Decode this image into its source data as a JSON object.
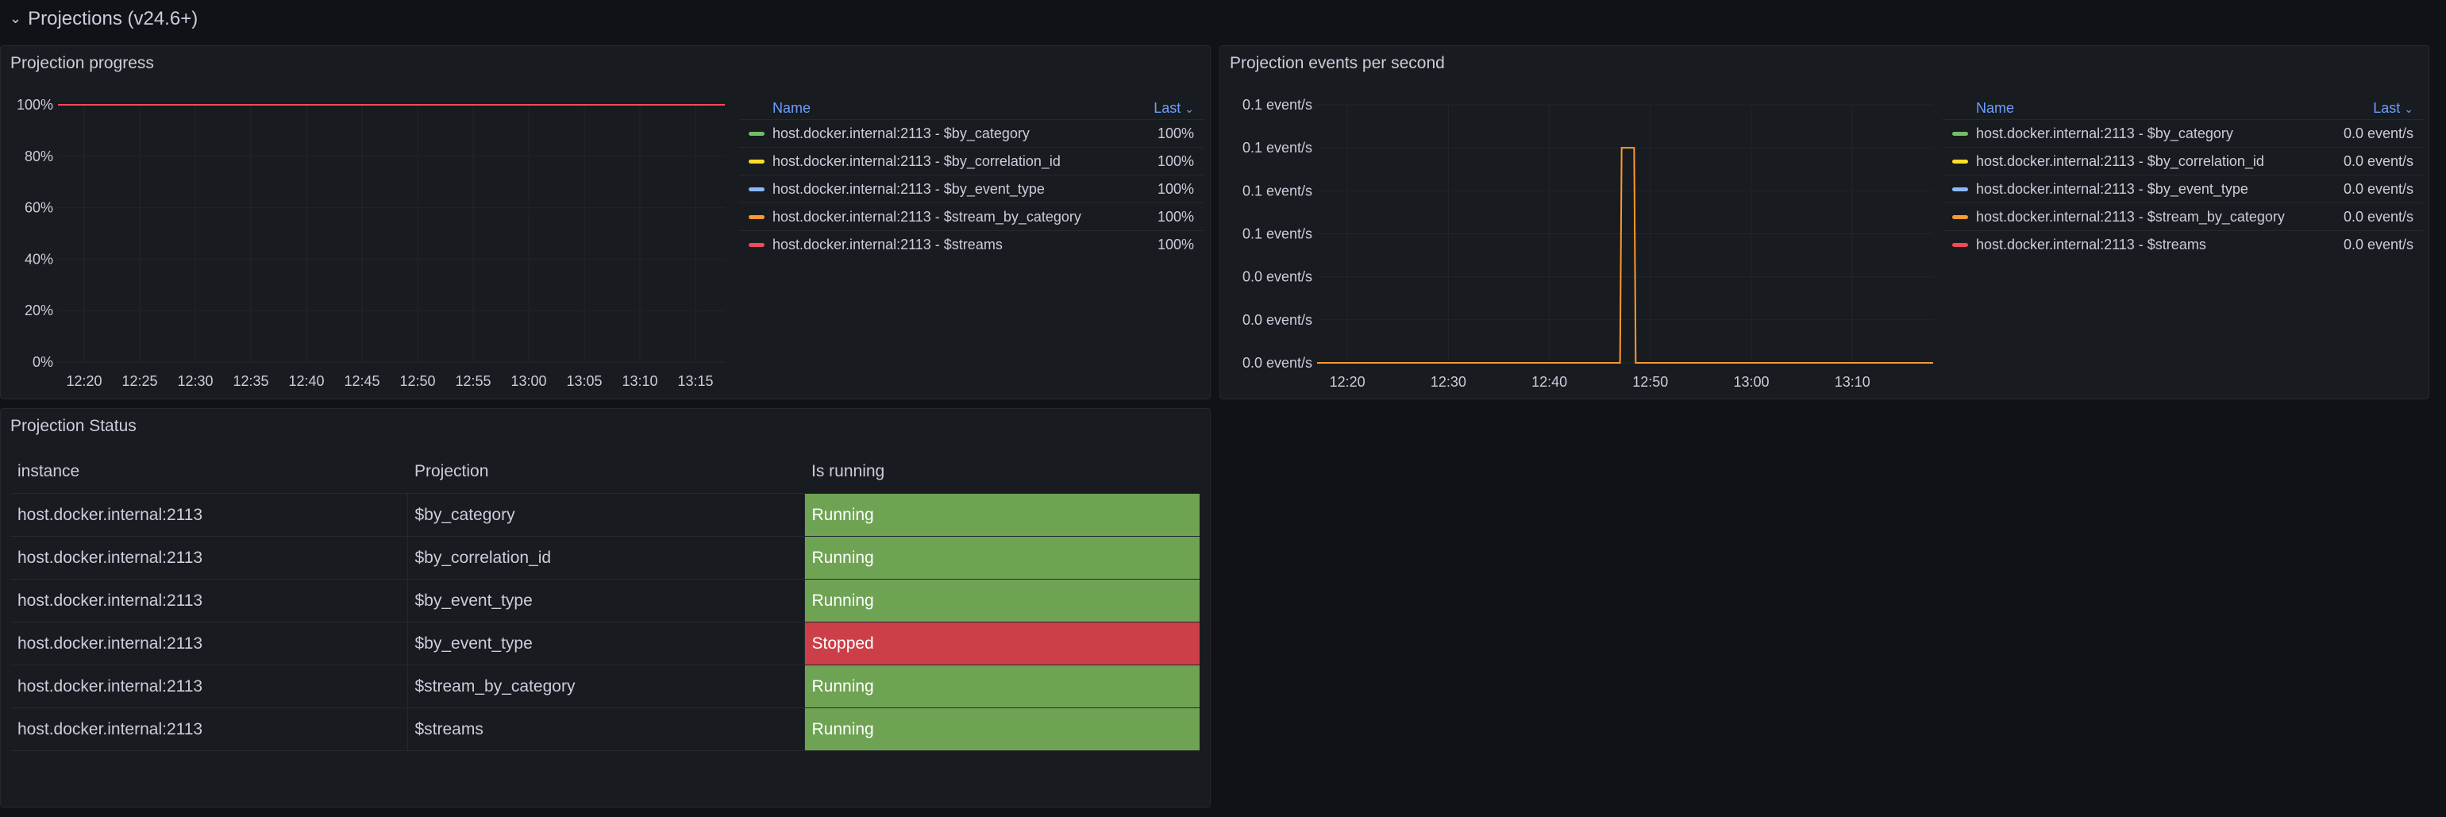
{
  "row": {
    "title": "Projections (v24.6+)"
  },
  "colors": {
    "green": "#73bf69",
    "yellow": "#fade2a",
    "blue": "#8ab8ff",
    "orange": "#ff9830",
    "red": "#f2495c",
    "running_bg": "#6fa354",
    "stopped_bg": "#cc3f48"
  },
  "progress_panel": {
    "title": "Projection progress",
    "legend": {
      "name_header": "Name",
      "last_header": "Last",
      "items": [
        {
          "label": "host.docker.internal:2113 - $by_category",
          "value": "100%",
          "color": "#73bf69"
        },
        {
          "label": "host.docker.internal:2113 - $by_correlation_id",
          "value": "100%",
          "color": "#fade2a"
        },
        {
          "label": "host.docker.internal:2113 - $by_event_type",
          "value": "100%",
          "color": "#8ab8ff"
        },
        {
          "label": "host.docker.internal:2113 - $stream_by_category",
          "value": "100%",
          "color": "#ff9830"
        },
        {
          "label": "host.docker.internal:2113 - $streams",
          "value": "100%",
          "color": "#f2495c"
        }
      ]
    },
    "chart_data": {
      "type": "line",
      "y_ticks": [
        "0%",
        "20%",
        "40%",
        "60%",
        "80%",
        "100%"
      ],
      "x_ticks": [
        "12:20",
        "12:25",
        "12:30",
        "12:35",
        "12:40",
        "12:45",
        "12:50",
        "12:55",
        "13:00",
        "13:05",
        "13:10",
        "13:15"
      ],
      "ylim": [
        0,
        100
      ],
      "series": [
        {
          "name": "host.docker.internal:2113 - $streams",
          "color": "#f2495c",
          "values": [
            100,
            100,
            100,
            100,
            100,
            100,
            100,
            100,
            100,
            100,
            100,
            100
          ]
        }
      ]
    }
  },
  "events_panel": {
    "title": "Projection events per second",
    "legend": {
      "name_header": "Name",
      "last_header": "Last",
      "items": [
        {
          "label": "host.docker.internal:2113 - $by_category",
          "value": "0.0 event/s",
          "color": "#73bf69"
        },
        {
          "label": "host.docker.internal:2113 - $by_correlation_id",
          "value": "0.0 event/s",
          "color": "#fade2a"
        },
        {
          "label": "host.docker.internal:2113 - $by_event_type",
          "value": "0.0 event/s",
          "color": "#8ab8ff"
        },
        {
          "label": "host.docker.internal:2113 - $stream_by_category",
          "value": "0.0 event/s",
          "color": "#ff9830"
        },
        {
          "label": "host.docker.internal:2113 - $streams",
          "value": "0.0 event/s",
          "color": "#f2495c"
        }
      ]
    },
    "chart_data": {
      "type": "line",
      "y_ticks": [
        "0.0 event/s",
        "0.0 event/s",
        "0.0 event/s",
        "0.1 event/s",
        "0.1 event/s",
        "0.1 event/s",
        "0.1 event/s"
      ],
      "x_ticks": [
        "12:20",
        "12:30",
        "12:40",
        "12:50",
        "13:00",
        "13:10"
      ],
      "ylim": [
        0,
        0.12
      ],
      "series": [
        {
          "name": "host.docker.internal:2113 - $stream_by_category",
          "color": "#ff9830",
          "points": [
            [
              "12:17",
              0
            ],
            [
              "12:47",
              0
            ],
            [
              "12:47",
              0.1
            ],
            [
              "12:48",
              0.1
            ],
            [
              "12:48",
              0
            ],
            [
              "13:18",
              0
            ]
          ]
        }
      ]
    }
  },
  "status_panel": {
    "title": "Projection Status",
    "headers": [
      "instance",
      "Projection",
      "Is running"
    ],
    "rows": [
      {
        "instance": "host.docker.internal:2113",
        "projection": "$by_category",
        "state": "Running"
      },
      {
        "instance": "host.docker.internal:2113",
        "projection": "$by_correlation_id",
        "state": "Running"
      },
      {
        "instance": "host.docker.internal:2113",
        "projection": "$by_event_type",
        "state": "Running"
      },
      {
        "instance": "host.docker.internal:2113",
        "projection": "$by_event_type",
        "state": "Stopped"
      },
      {
        "instance": "host.docker.internal:2113",
        "projection": "$stream_by_category",
        "state": "Running"
      },
      {
        "instance": "host.docker.internal:2113",
        "projection": "$streams",
        "state": "Running"
      }
    ]
  }
}
